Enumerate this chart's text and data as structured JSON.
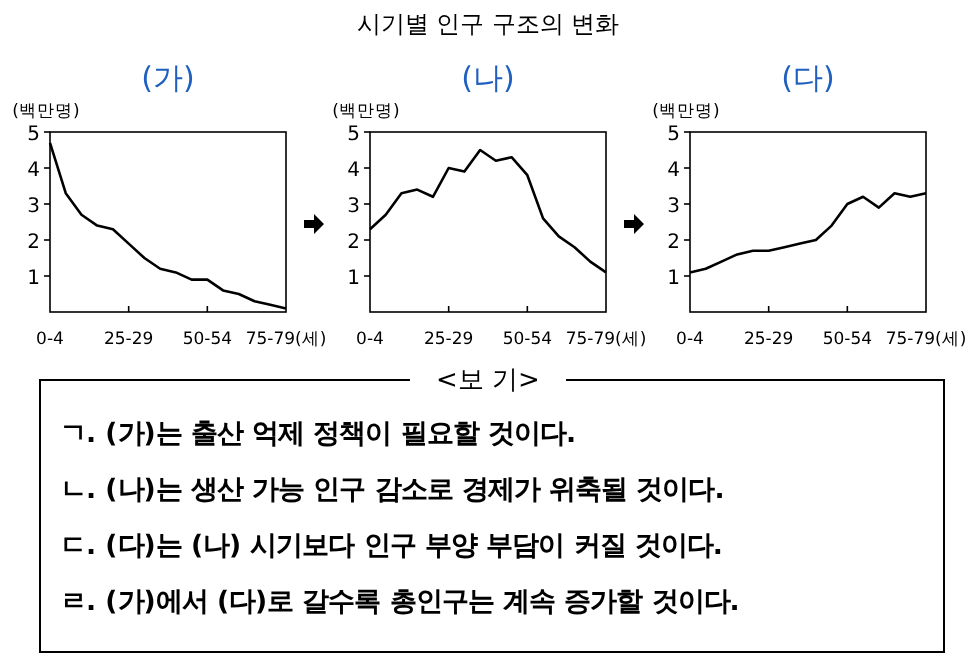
{
  "chart_data": [
    {
      "type": "other",
      "title": "시기별 인구 구조의 변화"
    },
    {
      "type": "line",
      "title": "(가)",
      "ylabel": "(백만명)",
      "categories": [
        "0-4",
        null,
        null,
        null,
        null,
        "25-29",
        null,
        null,
        null,
        null,
        "50-54",
        null,
        null,
        null,
        null,
        "75-79(세)"
      ],
      "values": [
        4.7,
        3.3,
        2.7,
        2.4,
        2.3,
        1.9,
        1.5,
        1.2,
        1.1,
        0.9,
        0.9,
        0.6,
        0.5,
        0.3,
        0.2,
        0.1
      ],
      "color": "#000000",
      "ylim": [
        0,
        5
      ],
      "yticks": [
        1,
        2,
        3,
        4,
        5
      ]
    },
    {
      "type": "line",
      "title": "(나)",
      "ylabel": "(백만명)",
      "categories": [
        "0-4",
        null,
        null,
        null,
        null,
        "25-29",
        null,
        null,
        null,
        null,
        "50-54",
        null,
        null,
        null,
        null,
        "75-79(세)"
      ],
      "values": [
        2.3,
        2.7,
        3.3,
        3.4,
        3.2,
        4.0,
        3.9,
        4.5,
        4.2,
        4.3,
        3.8,
        2.6,
        2.1,
        1.8,
        1.4,
        1.1
      ],
      "color": "#000000",
      "ylim": [
        0,
        5
      ],
      "yticks": [
        1,
        2,
        3,
        4,
        5
      ]
    },
    {
      "type": "line",
      "title": "(다)",
      "ylabel": "(백만명)",
      "categories": [
        "0-4",
        null,
        null,
        null,
        null,
        "25-29",
        null,
        null,
        null,
        null,
        "50-54",
        null,
        null,
        null,
        null,
        "75-79(세)"
      ],
      "values": [
        1.1,
        1.2,
        1.4,
        1.6,
        1.7,
        1.7,
        1.8,
        1.9,
        2.0,
        2.4,
        3.0,
        3.2,
        2.9,
        3.3,
        3.2,
        3.3
      ],
      "color": "#000000",
      "ylim": [
        0,
        5
      ],
      "yticks": [
        1,
        2,
        3,
        4,
        5
      ]
    },
    {
      "type": "other",
      "title": "<보 기>",
      "annotations": [
        "ㄱ. (가)는 출산 억제 정책이 필요할 것이다.",
        "ㄴ. (나)는 생산 가능 인구 감소로 경제가 위축될 것이다.",
        "ㄷ. (다)는 (나) 시기보다 인구 부양 부담이 커질 것이다.",
        "ㄹ. (가)에서 (다)로 갈수록 총인구는 계속 증가할 것이다."
      ]
    }
  ]
}
